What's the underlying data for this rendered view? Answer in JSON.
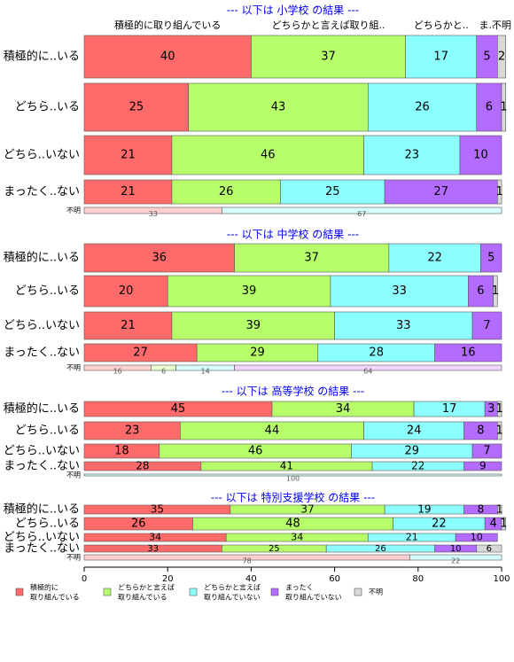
{
  "chart_data": {
    "type": "bar",
    "orientation": "horizontal",
    "stacked": true,
    "xlim": [
      0,
      100
    ],
    "xticks": [
      0,
      20,
      40,
      60,
      80,
      100
    ],
    "series": [
      {
        "name": [
          "積極的に",
          "取り組んでいる"
        ],
        "color": "#ff6b6b",
        "pale_color": "#ffd0d0"
      },
      {
        "name": [
          "どちらかと言えば",
          "取り組んでいる"
        ],
        "color": "#b6ff6b",
        "pale_color": "#eaffd0"
      },
      {
        "name": [
          "どちらかと言えば",
          "取り組んでいない"
        ],
        "color": "#8cffff",
        "pale_color": "#d6ffff"
      },
      {
        "name": [
          "まったく",
          "取り組んでいない"
        ],
        "color": "#b46bff",
        "pale_color": "#f0d6ff"
      },
      {
        "name": [
          "不明"
        ],
        "color": "#d9d9d9",
        "pale_color": "#eeeeee"
      }
    ],
    "panels": [
      {
        "title": "--- 以下は 小学校 の結果 ---",
        "column_labels": [
          "積極的に取り組んでいる",
          "どちらかと言えば取り組..",
          "どちらかと..",
          "ま..",
          "不明"
        ],
        "categories": [
          "積極的に..いる",
          "どちら..いる",
          "どちら..いない",
          "まったく..ない",
          "不明"
        ],
        "values": [
          [
            40,
            37,
            17,
            5,
            2
          ],
          [
            25,
            43,
            26,
            6,
            1
          ],
          [
            21,
            46,
            23,
            10,
            null
          ],
          [
            21,
            26,
            25,
            27,
            1
          ],
          [
            33,
            null,
            67,
            null,
            null
          ]
        ]
      },
      {
        "title": "--- 以下は 中学校 の結果 ---",
        "categories": [
          "積極的に..いる",
          "どちら..いる",
          "どちら..いない",
          "まったく..ない",
          "不明"
        ],
        "values": [
          [
            36,
            37,
            22,
            5,
            null
          ],
          [
            20,
            39,
            33,
            6,
            1
          ],
          [
            21,
            39,
            33,
            7,
            null
          ],
          [
            27,
            29,
            28,
            16,
            null
          ],
          [
            16,
            6,
            14,
            64,
            null
          ]
        ]
      },
      {
        "title": "--- 以下は 高等学校 の結果 ---",
        "categories": [
          "積極的に..いる",
          "どちら..いる",
          "どちら..いない",
          "まったく..ない",
          "不明"
        ],
        "values": [
          [
            45,
            34,
            17,
            3,
            1
          ],
          [
            23,
            44,
            24,
            8,
            1
          ],
          [
            18,
            46,
            29,
            7,
            null
          ],
          [
            28,
            41,
            22,
            9,
            null
          ],
          [
            null,
            null,
            100,
            null,
            null
          ]
        ]
      },
      {
        "title": "--- 以下は 特別支援学校 の結果 ---",
        "categories": [
          "積極的に..いる",
          "どちら..いる",
          "どちら..いない",
          "まったく..ない",
          "不明"
        ],
        "values": [
          [
            35,
            37,
            19,
            8,
            1
          ],
          [
            26,
            48,
            22,
            4,
            1
          ],
          [
            34,
            34,
            21,
            10,
            null
          ],
          [
            33,
            25,
            26,
            10,
            6
          ],
          [
            78,
            null,
            22,
            null,
            null
          ]
        ]
      }
    ]
  }
}
